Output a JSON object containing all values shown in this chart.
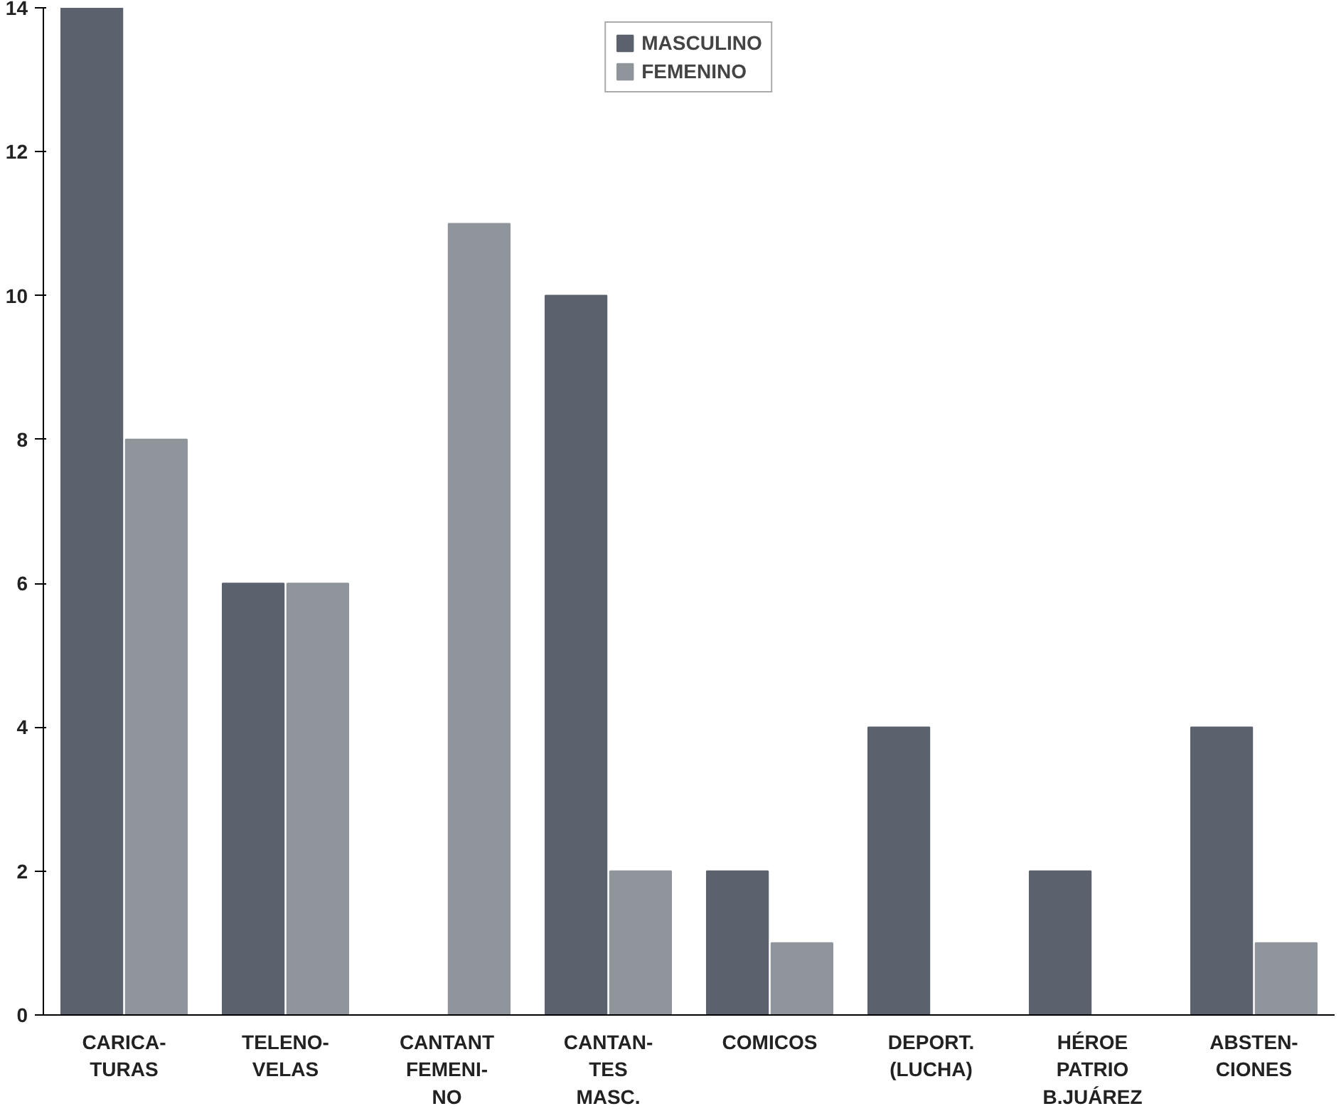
{
  "chart_data": {
    "type": "bar",
    "categories": [
      "CARICA-\nTURAS",
      "TELENO-\nVELAS",
      "CANTANT\nFEMENI-\nNO",
      "CANTAN-\nTES\nMASC.",
      "COMICOS",
      "DEPORT.\n(LUCHA)",
      "HÉROE\nPATRIO\nB.JUÁREZ",
      "ABSTEN-\nCIONES"
    ],
    "series": [
      {
        "name": "MASCULINO",
        "color": "#5b626e",
        "values": [
          14,
          6,
          0,
          10,
          2,
          4,
          2,
          4
        ]
      },
      {
        "name": "FEMENINO",
        "color": "#8f959b",
        "values": [
          8,
          6,
          11,
          2,
          1,
          0,
          0,
          1
        ]
      }
    ],
    "ylim": [
      0,
      14
    ],
    "yticks": [
      0,
      2,
      4,
      6,
      8,
      10,
      12,
      14
    ],
    "grid": false,
    "legend": "top"
  }
}
